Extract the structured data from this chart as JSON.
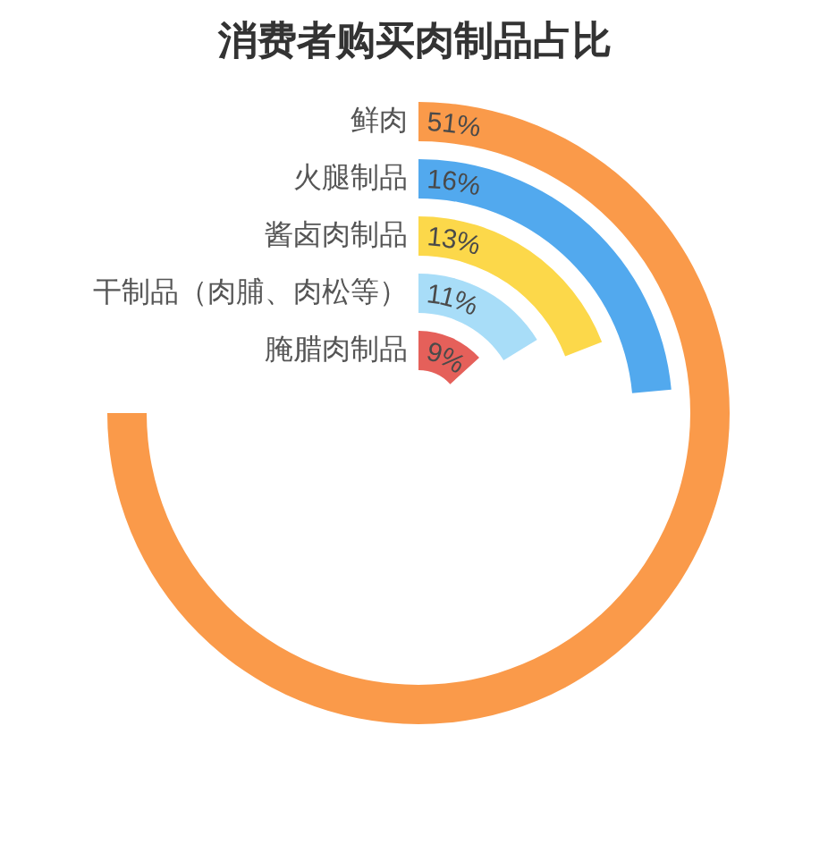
{
  "chart_data": {
    "type": "other",
    "title": "消费者购买肉制品占比",
    "categories": [
      "鲜肉",
      "火腿制品",
      "酱卤肉制品",
      "干制品（肉脯、肉松等）",
      "腌腊肉制品"
    ],
    "values": [
      51,
      16,
      13,
      11,
      9
    ],
    "value_labels": [
      "51%",
      "16%",
      "13%",
      "11%",
      "9%"
    ],
    "colors": [
      "#fa9a4a",
      "#52a9ee",
      "#fcd84a",
      "#a8ddf8",
      "#e5605a"
    ]
  }
}
